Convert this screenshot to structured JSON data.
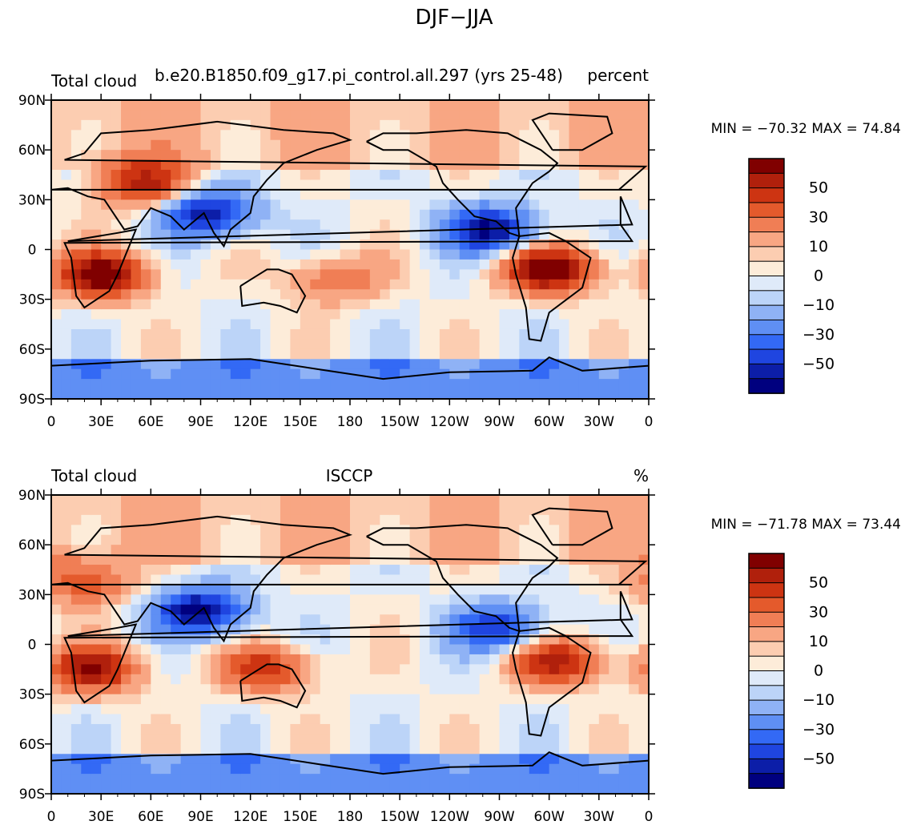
{
  "figure": {
    "title": "DJF−JJA"
  },
  "colors": {
    "levels": [
      {
        "value": -60,
        "color": "#00007f"
      },
      {
        "value": -50,
        "color": "#0c1ea8"
      },
      {
        "value": -40,
        "color": "#1f45e0"
      },
      {
        "value": -30,
        "color": "#3369f5"
      },
      {
        "value": -20,
        "color": "#5f8ff4"
      },
      {
        "value": -10,
        "color": "#8fb2f5"
      },
      {
        "value": -5,
        "color": "#bcd4f8"
      },
      {
        "value": 0,
        "color": "#dfeaf9"
      },
      {
        "value": 5,
        "color": "#fdecd9"
      },
      {
        "value": 10,
        "color": "#fccdb1"
      },
      {
        "value": 20,
        "color": "#f8a683"
      },
      {
        "value": 30,
        "color": "#f07e55"
      },
      {
        "value": 40,
        "color": "#e45a2c"
      },
      {
        "value": 50,
        "color": "#cd3412"
      },
      {
        "value": 60,
        "color": "#b0200c"
      },
      {
        "value": 70,
        "color": "#800000"
      }
    ],
    "land_line": "#000000"
  },
  "chart_data": [
    {
      "type": "heatmap",
      "panel": "model",
      "title_left": "Total cloud",
      "title_center": "b.e20.B1850.f09_g17.pi_control.all.297 (yrs 25-48)",
      "title_right": "percent",
      "stats_label": "MIN = −70.32 MAX =  74.84",
      "min": -70.32,
      "max": 74.84,
      "x_ticks": [
        "0",
        "30E",
        "60E",
        "90E",
        "120E",
        "150E",
        "180",
        "150W",
        "120W",
        "90W",
        "60W",
        "30W",
        "0"
      ],
      "y_ticks": [
        "90N",
        "60N",
        "30N",
        "0",
        "30S",
        "60S",
        "90S"
      ],
      "colorbar_labels": [
        "50",
        "30",
        "10",
        "0",
        "−10",
        "−30",
        "−50"
      ],
      "features": [
        {
          "lon": 30,
          "lat": -15,
          "value": 70
        },
        {
          "lon": 55,
          "lat": 40,
          "value": 55
        },
        {
          "lon": 95,
          "lat": 22,
          "value": -60
        },
        {
          "lon": 300,
          "lat": -12,
          "value": 72
        },
        {
          "lon": 265,
          "lat": 12,
          "value": -62
        },
        {
          "lon": 170,
          "lat": -18,
          "value": 30
        }
      ]
    },
    {
      "type": "heatmap",
      "panel": "observation",
      "title_left": "Total cloud",
      "title_center": "ISCCP",
      "title_right": "%",
      "stats_label": "MIN = −71.78 MAX =  73.44",
      "min": -71.78,
      "max": 73.44,
      "x_ticks": [
        "0",
        "30E",
        "60E",
        "90E",
        "120E",
        "150E",
        "180",
        "150W",
        "120W",
        "90W",
        "60W",
        "30W",
        "0"
      ],
      "y_ticks": [
        "90N",
        "60N",
        "30N",
        "0",
        "30S",
        "60S",
        "90S"
      ],
      "colorbar_labels": [
        "50",
        "30",
        "10",
        "0",
        "−10",
        "−30",
        "−50"
      ],
      "features": [
        {
          "lon": 25,
          "lat": -15,
          "value": 60
        },
        {
          "lon": 90,
          "lat": 20,
          "value": -65
        },
        {
          "lon": 130,
          "lat": -15,
          "value": 45
        },
        {
          "lon": 305,
          "lat": -10,
          "value": 55
        },
        {
          "lon": 270,
          "lat": 10,
          "value": -50
        },
        {
          "lon": 20,
          "lat": 38,
          "value": 40
        }
      ]
    }
  ]
}
